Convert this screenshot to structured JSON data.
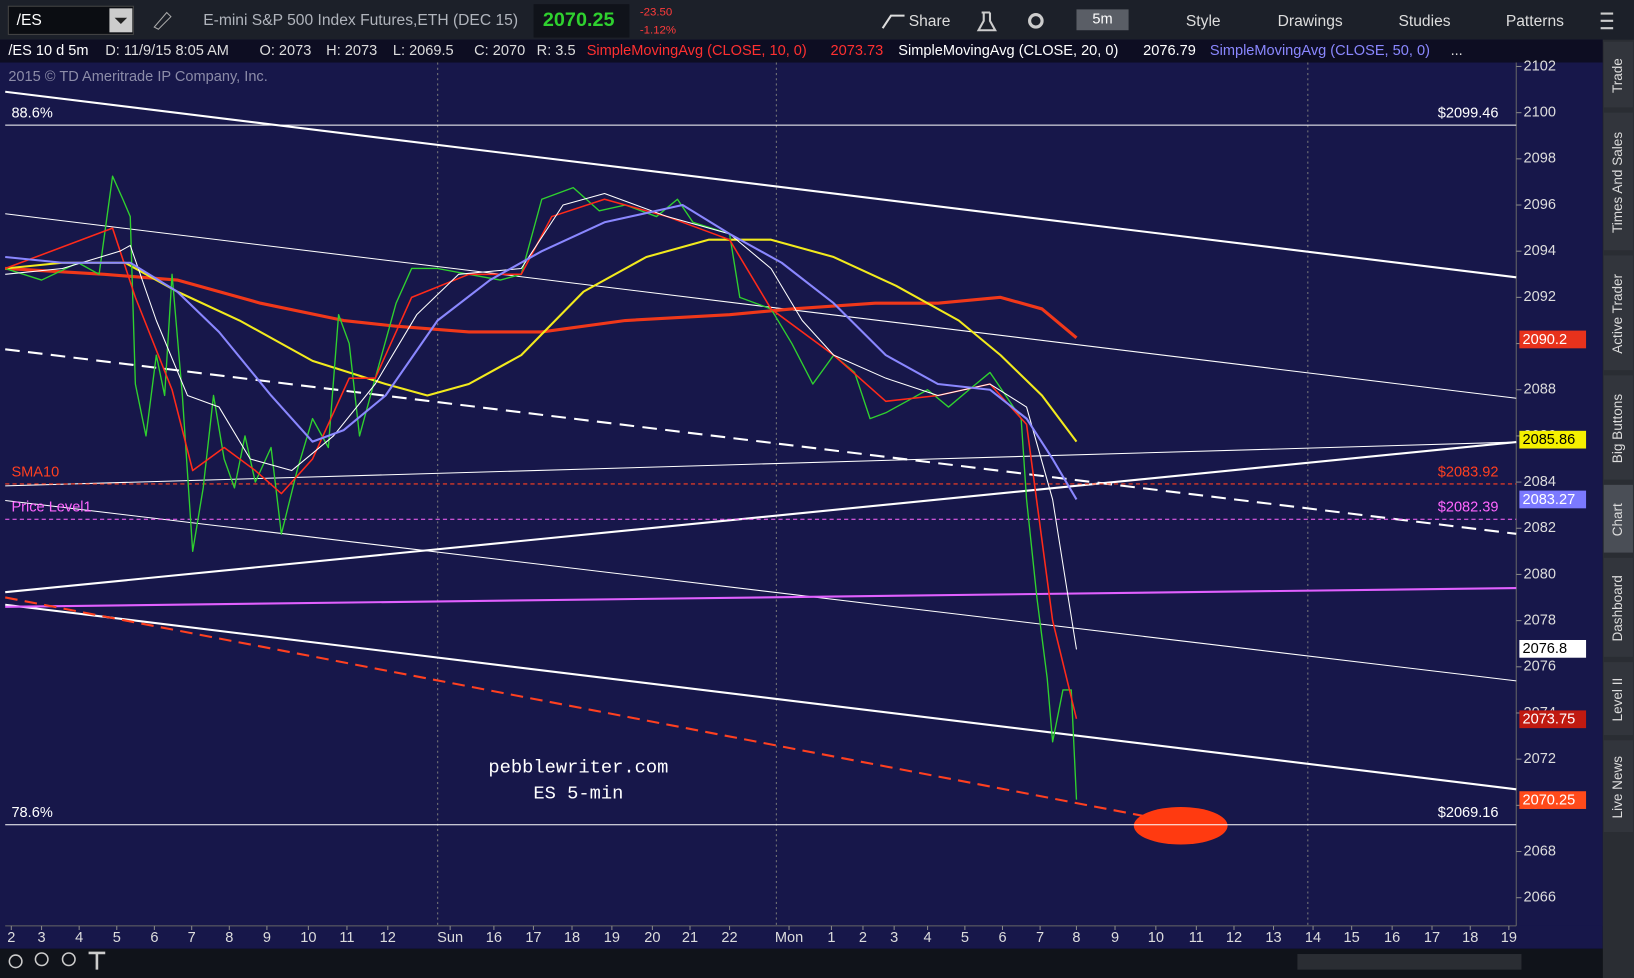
{
  "toolbar": {
    "symbol": "/ES",
    "description": "E-mini S&P 500 Index Futures,ETH (DEC 15)",
    "last": "2070.25",
    "change": "-23.50",
    "change_pct": "-1.12%",
    "share": "Share",
    "timeframe": "5m",
    "style": "Style",
    "drawings": "Drawings",
    "studies": "Studies",
    "patterns": "Patterns"
  },
  "info_bar": {
    "symbol": "/ES 10 d 5m",
    "date": "D: 11/9/15 8:05 AM",
    "open": "O: 2073",
    "high": "H: 2073",
    "low": "L: 2069.5",
    "close": "C: 2070",
    "range": "R: 3.5",
    "sma10_value": "2073.73",
    "sma20_value": "2076.79",
    "more": "..."
  },
  "copyright": "2015 © TD Ameritrade IP Company, Inc.",
  "sidebar_tabs": [
    "Trade",
    "Times And Sales",
    "Active Trader",
    "Big Buttons",
    "Chart",
    "Dashboard",
    "Level II",
    "Live News"
  ],
  "chart_data": {
    "type": "line",
    "annotations": [
      "pebblewriter.com",
      "ES 5-min"
    ],
    "xlim": [
      0,
      470
    ],
    "xticks": [
      {
        "value": 1.9,
        "label": "2"
      },
      {
        "value": 11.3,
        "label": "3"
      },
      {
        "value": 23,
        "label": "4"
      },
      {
        "value": 34.7,
        "label": "5"
      },
      {
        "value": 46.4,
        "label": "6"
      },
      {
        "value": 58,
        "label": "7"
      },
      {
        "value": 69.7,
        "label": "8"
      },
      {
        "value": 81.4,
        "label": "9"
      },
      {
        "value": 94.3,
        "label": "10"
      },
      {
        "value": 106.3,
        "label": "11"
      },
      {
        "value": 119,
        "label": "12"
      },
      {
        "value": 138.4,
        "label": "Sun"
      },
      {
        "value": 152,
        "label": "16"
      },
      {
        "value": 164.3,
        "label": "17"
      },
      {
        "value": 176.3,
        "label": "18"
      },
      {
        "value": 188.7,
        "label": "19"
      },
      {
        "value": 201.3,
        "label": "20"
      },
      {
        "value": 213,
        "label": "21"
      },
      {
        "value": 225.3,
        "label": "22"
      },
      {
        "value": 243.8,
        "label": "Mon"
      },
      {
        "value": 257,
        "label": "1"
      },
      {
        "value": 266.8,
        "label": "2"
      },
      {
        "value": 276.5,
        "label": "3"
      },
      {
        "value": 286.9,
        "label": "4"
      },
      {
        "value": 298.5,
        "label": "5"
      },
      {
        "value": 310.2,
        "label": "6"
      },
      {
        "value": 321.9,
        "label": "7"
      },
      {
        "value": 333.2,
        "label": "8"
      },
      {
        "value": 345.2,
        "label": "9"
      },
      {
        "value": 357.9,
        "label": "10"
      },
      {
        "value": 370.5,
        "label": "11"
      },
      {
        "value": 382.2,
        "label": "12"
      },
      {
        "value": 394.5,
        "label": "13"
      },
      {
        "value": 406.8,
        "label": "14"
      },
      {
        "value": 418.8,
        "label": "15"
      },
      {
        "value": 431.4,
        "label": "16"
      },
      {
        "value": 443.8,
        "label": "17"
      },
      {
        "value": 455.7,
        "label": "18"
      },
      {
        "value": 467.7,
        "label": "19"
      }
    ],
    "ylim": [
      2064.78,
      2102.17
    ],
    "yticks": [
      2066,
      2068,
      2070,
      2072,
      2074,
      2076,
      2078,
      2080,
      2082,
      2084,
      2086,
      2088,
      2090,
      2092,
      2094,
      2096,
      2098,
      2100,
      2102
    ],
    "series": [
      {
        "color": "#f0381a",
        "width": 3,
        "x": [
          0,
          30.8,
          53.5,
          79.4,
          105.3,
          121.6,
          144.2,
          166.9,
          192.9,
          225.3,
          244.7,
          270.6,
          290.1,
          309.6,
          322.5,
          333.2
        ],
        "values": [
          2093.25,
          2093,
          2092.75,
          2091.75,
          2091,
          2090.75,
          2090.5,
          2090.5,
          2091,
          2091.25,
          2091.5,
          2091.75,
          2091.75,
          2092,
          2091.5,
          2090.25
        ]
      },
      {
        "color": "#f2ea1d",
        "width": 2,
        "x": [
          0,
          17.8,
          37.3,
          53.5,
          72.9,
          95.6,
          118.3,
          131.3,
          144.2,
          160.5,
          179.9,
          199.4,
          218.8,
          238.2,
          257.7,
          277.1,
          296.6,
          309.6,
          322.5,
          333.2
        ],
        "values": [
          2093.25,
          2093.5,
          2093.5,
          2092.25,
          2091,
          2089.25,
          2088.25,
          2087.75,
          2088.25,
          2089.5,
          2092.25,
          2093.75,
          2094.5,
          2094.5,
          2093.75,
          2092.5,
          2091,
          2089.5,
          2087.75,
          2085.75
        ]
      },
      {
        "color": "#2fd12f",
        "width": 1.3,
        "x": [
          0,
          11.3,
          22.7,
          29.2,
          33.4,
          36.6,
          38.9,
          40.5,
          43.8,
          47,
          49.6,
          51.9,
          55.1,
          58.3,
          61.6,
          64.8,
          68.1,
          71.3,
          74.6,
          77.8,
          82.7,
          85.9,
          90.8,
          95.6,
          100.5,
          103.7,
          107,
          110.2,
          115.1,
          121.6,
          126.4,
          134.5,
          144.2,
          154,
          160.5,
          166.9,
          176.7,
          184.8,
          192.9,
          202.6,
          209.1,
          213.9,
          225.3,
          228.5,
          238.2,
          244.7,
          251.2,
          257.7,
          264.2,
          269,
          273.9,
          280.4,
          286.9,
          293.4,
          299.8,
          306.3,
          311.2,
          316,
          317.7,
          320.9,
          324.1,
          325.8,
          329,
          331.6,
          333.2
        ],
        "values": [
          2093.25,
          2092.75,
          2093.5,
          2093,
          2097.25,
          2096.25,
          2095.5,
          2088.25,
          2086,
          2089.5,
          2087.75,
          2093,
          2087.75,
          2081,
          2083.75,
          2087.75,
          2085,
          2083.75,
          2086,
          2084,
          2085.5,
          2081.75,
          2084.5,
          2086.75,
          2085.5,
          2091.25,
          2090,
          2086,
          2088.5,
          2091.75,
          2093.25,
          2093.25,
          2093,
          2092.75,
          2093,
          2096.25,
          2096.75,
          2095.75,
          2096,
          2095.5,
          2096.25,
          2095.25,
          2094.75,
          2092,
          2091.5,
          2090,
          2088.25,
          2089.5,
          2088.75,
          2086.75,
          2087,
          2087.5,
          2088,
          2087.25,
          2088,
          2088.75,
          2087.75,
          2086.75,
          2083.25,
          2079,
          2075.5,
          2072.75,
          2075,
          2075,
          2070.25
        ]
      },
      {
        "name": "SimpleMovingAvg (CLOSE, 10, 0)",
        "color": "#ff2a1a",
        "width": 1.5,
        "x": [
          0,
          33.4,
          40.5,
          51.9,
          58.3,
          68.1,
          77.8,
          85.9,
          95.6,
          107,
          115.1,
          126.4,
          144.2,
          160.5,
          170,
          186.4,
          205.9,
          225.3,
          238.2,
          257.7,
          273.9,
          290.1,
          306.3,
          317.7,
          325.8,
          333.2
        ],
        "values": [
          2093.25,
          2095,
          2092,
          2088,
          2084.5,
          2085.5,
          2084.5,
          2083.5,
          2085,
          2088.5,
          2088.5,
          2092,
          2093,
          2093,
          2095.5,
          2096.25,
          2095.5,
          2094.5,
          2091.5,
          2089.5,
          2087.5,
          2087.75,
          2088.25,
          2086.5,
          2078,
          2073.75
        ]
      },
      {
        "name": "SimpleMovingAvg (CLOSE, 20, 0)",
        "color": "#ffffff",
        "width": 1,
        "x": [
          0,
          17.8,
          35.7,
          38.9,
          47,
          56.7,
          66.5,
          76.2,
          89.1,
          102.1,
          115.1,
          128,
          141,
          160.5,
          173.5,
          186.4,
          205.9,
          225.3,
          238.2,
          247.9,
          257.7,
          273.9,
          290.1,
          306.3,
          317.7,
          325.8,
          333.2
        ],
        "values": [
          2093,
          2093.25,
          2094,
          2094.25,
          2091,
          2087.75,
          2087.25,
          2085,
          2084.5,
          2086,
          2088.25,
          2091.25,
          2093,
          2093.25,
          2096,
          2096.5,
          2095.5,
          2094.75,
          2093.25,
          2091,
          2089.5,
          2088.5,
          2087.75,
          2088.25,
          2087.25,
          2083.25,
          2076.75
        ]
      },
      {
        "name": "SimpleMovingAvg (CLOSE, 50, 0)",
        "color": "#8a87ff",
        "width": 2,
        "x": [
          0,
          17.8,
          38.9,
          53.5,
          66.5,
          82.7,
          95.6,
          105.3,
          118.3,
          134.5,
          150.8,
          166.9,
          186.4,
          210.7,
          225.3,
          241.5,
          257.7,
          273.9,
          290.1,
          306.3,
          317.7,
          325.8,
          333.2
        ],
        "values": [
          2093.75,
          2093.5,
          2093.5,
          2092.25,
          2090.5,
          2087.75,
          2085.75,
          2086.25,
          2087.75,
          2091,
          2092.75,
          2094,
          2095.25,
          2096,
          2094.75,
          2093.5,
          2091.75,
          2089.5,
          2088.25,
          2088,
          2086.75,
          2085,
          2083.25
        ]
      }
    ],
    "levels": [
      {
        "name": "88.6%",
        "value": 2099.46,
        "value_label": "$2099.46",
        "color": "#ffffff",
        "dashed": false
      },
      {
        "name": "SMA10",
        "value": 2083.92,
        "value_label": "$2083.92",
        "color": "#ff4020",
        "dashed": true
      },
      {
        "name": "Price Level1",
        "value": 2082.39,
        "value_label": "$2082.39",
        "color": "#ff66ff",
        "dashed": true
      },
      {
        "name": "78.6%",
        "value": 2069.16,
        "value_label": "$2069.16",
        "color": "#ffffff",
        "dashed": false
      }
    ],
    "price_badges": [
      {
        "value": 2090.2,
        "color": "#e8321c",
        "text_color": "#ffffff"
      },
      {
        "value": 2085.86,
        "color": "#f5f000",
        "text_color": "#000000"
      },
      {
        "value": 2083.27,
        "color": "#7b79ff",
        "text_color": "#ffffff"
      },
      {
        "value": 2076.8,
        "color": "#ffffff",
        "text_color": "#000000"
      },
      {
        "value": 2073.75,
        "color": "#c01a10",
        "text_color": "#ffffff"
      },
      {
        "value": 2070.25,
        "color": "#ff4a1a",
        "text_color": "#ffffff"
      }
    ]
  }
}
